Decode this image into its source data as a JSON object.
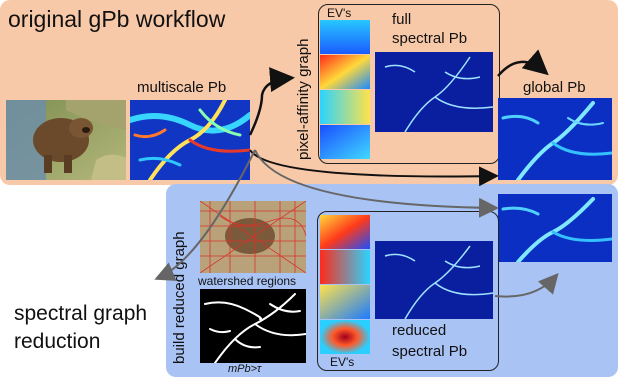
{
  "top_panel": {
    "title": "original gPb workflow"
  },
  "labels": {
    "multiscale": "multiscale Pb",
    "pixel_affinity": "pixel-affinity graph",
    "evs_top": "EV's",
    "full_line1": "full",
    "full_line2": "spectral Pb",
    "global_pb": "global Pb"
  },
  "bottom_panel": {
    "title_line1": "spectral graph",
    "title_line2": "reduction",
    "build_graph": "build reduced graph",
    "watershed": "watershed regions",
    "threshold": "mPb>τ",
    "evs_bottom": "EV's",
    "reduced_line1": "reduced",
    "reduced_line2": "spectral Pb"
  },
  "colors": {
    "top_panel": "#f8c9a8",
    "bottom_panel": "#a9c3f5",
    "arrow_dark": "#111111",
    "arrow_gray": "#666666"
  }
}
